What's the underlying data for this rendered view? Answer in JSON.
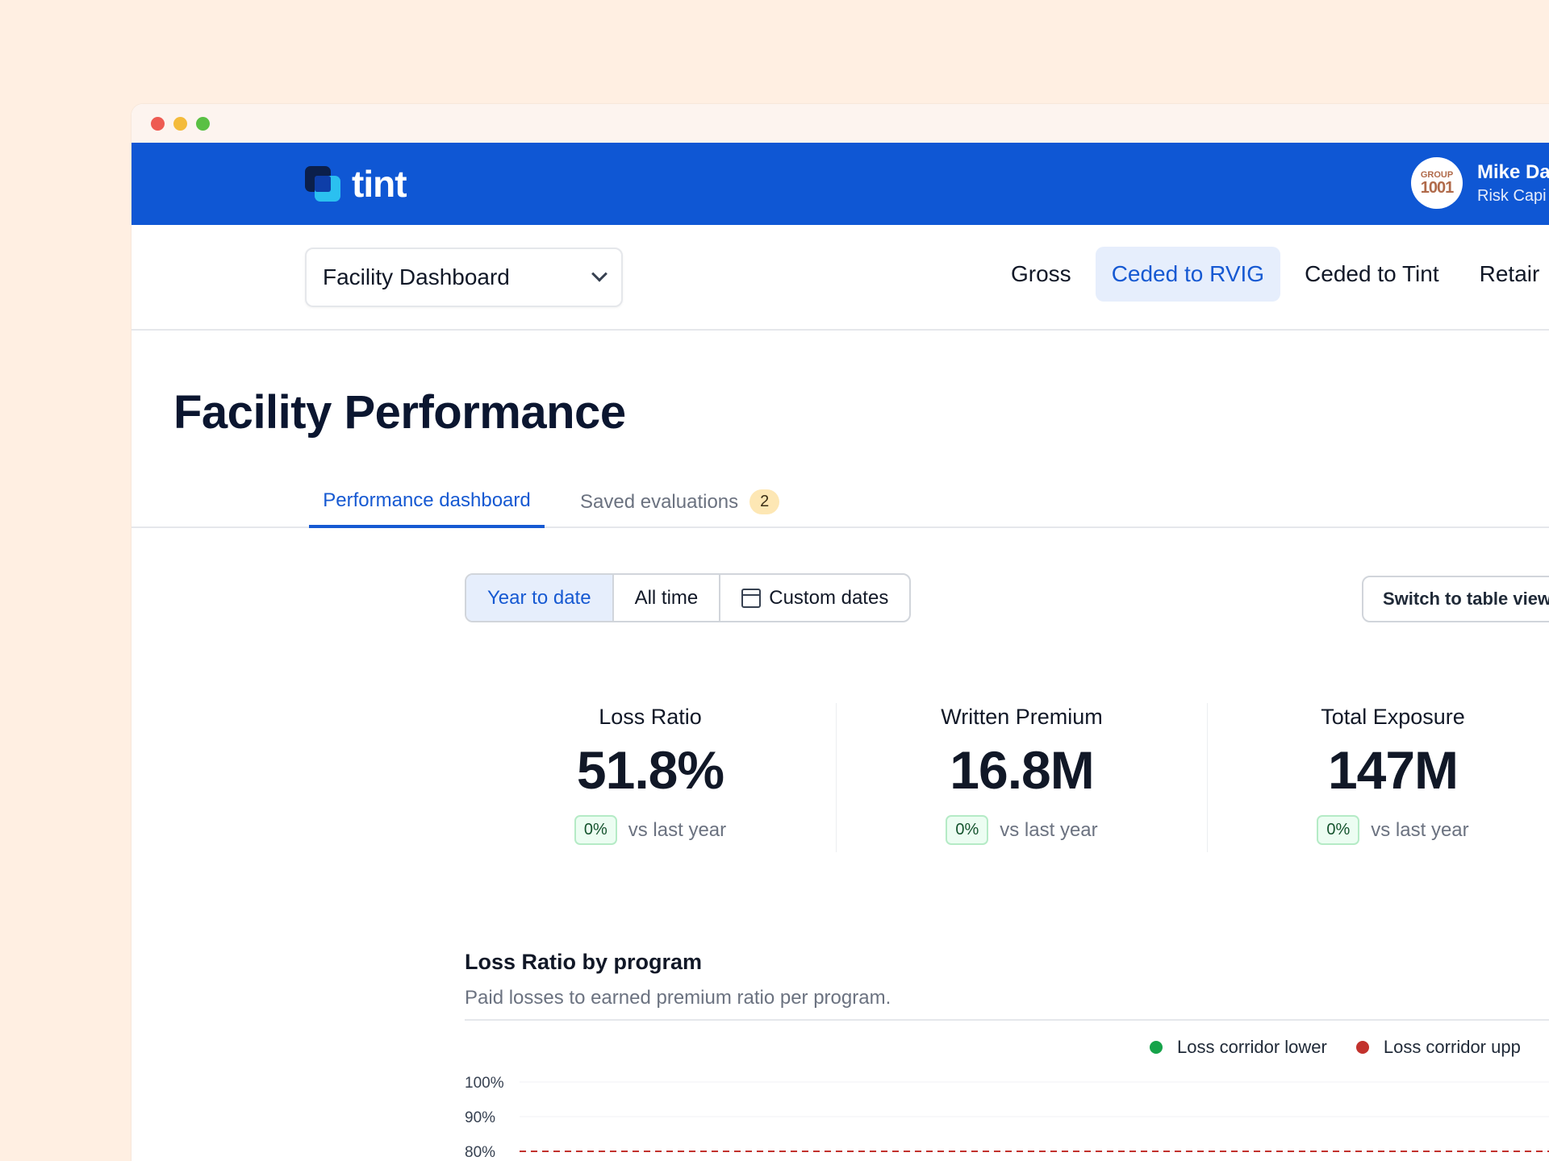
{
  "window": {
    "controls": [
      "close",
      "minimize",
      "maximize"
    ]
  },
  "brand": {
    "name": "tint"
  },
  "user": {
    "avatar_top": "GROUP",
    "avatar_bottom": "1001",
    "name": "Mike Da",
    "org": "Risk Capi"
  },
  "facility_select": {
    "value": "Facility Dashboard"
  },
  "view_tabs": [
    {
      "label": "Gross",
      "active": false
    },
    {
      "label": "Ceded to RVIG",
      "active": true
    },
    {
      "label": "Ceded to Tint",
      "active": false
    },
    {
      "label": "Retair",
      "active": false
    }
  ],
  "page": {
    "title": "Facility Performance"
  },
  "tabs": {
    "performance": "Performance dashboard",
    "saved": "Saved evaluations",
    "saved_count": "2"
  },
  "date_range": {
    "options": [
      "Year to date",
      "All time",
      "Custom dates"
    ],
    "selected": "Year to date"
  },
  "switch_view": {
    "label": "Switch to table view"
  },
  "kpis": [
    {
      "label": "Loss Ratio",
      "value": "51.8%",
      "delta": "0%",
      "delta_text": "vs last year"
    },
    {
      "label": "Written Premium",
      "value": "16.8M",
      "delta": "0%",
      "delta_text": "vs last year"
    },
    {
      "label": "Total Exposure",
      "value": "147M",
      "delta": "0%",
      "delta_text": "vs last year"
    }
  ],
  "chart": {
    "title": "Loss Ratio by program",
    "subtitle": "Paid losses to earned premium ratio per program.",
    "legend": [
      {
        "label": "Loss corridor lower",
        "color": "#16a34a"
      },
      {
        "label": "Loss corridor upp",
        "color": "#c2322d"
      }
    ]
  },
  "chart_data": {
    "type": "line",
    "title": "Loss Ratio by program",
    "ytick_labels": [
      "100%",
      "90%",
      "80%"
    ],
    "yticks": [
      100,
      90,
      80
    ],
    "series": [
      {
        "name": "Loss corridor upp",
        "y": 80,
        "style": "dashed",
        "color": "#c2322d"
      }
    ],
    "ylim": [
      80,
      100
    ]
  },
  "colors": {
    "accent": "#0f57d4",
    "active_text": "#1659d2",
    "background": "#ffefe2"
  }
}
